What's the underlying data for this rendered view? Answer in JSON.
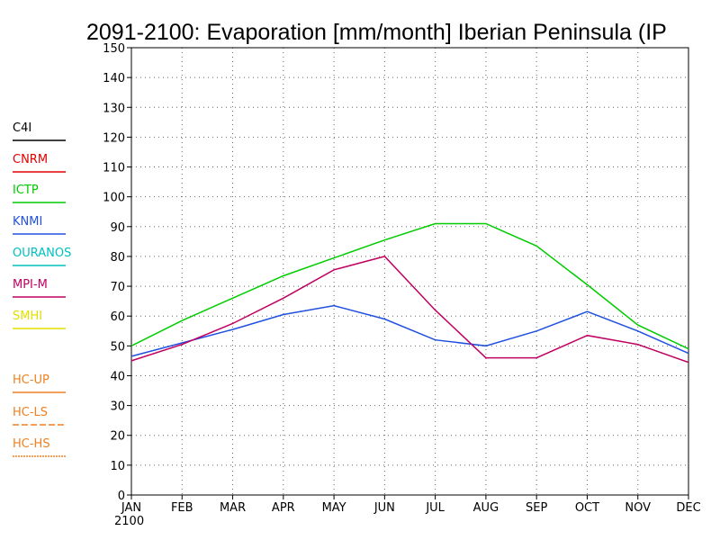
{
  "chart_data": {
    "type": "line",
    "title": "2091-2100: Evaporation [mm/month] Iberian Peninsula (IP",
    "xlabel": "",
    "ylabel": "",
    "categories": [
      "JAN",
      "FEB",
      "MAR",
      "APR",
      "MAY",
      "JUN",
      "JUL",
      "AUG",
      "SEP",
      "OCT",
      "NOV",
      "DEC"
    ],
    "x_year_label": "2100",
    "ylim": [
      0,
      150
    ],
    "yticks": [
      0,
      10,
      20,
      30,
      40,
      50,
      60,
      70,
      80,
      90,
      100,
      110,
      120,
      130,
      140,
      150
    ],
    "grid": true,
    "legend_position": "left",
    "legend": [
      {
        "name": "C4I",
        "color": "#000000",
        "dash": "solid"
      },
      {
        "name": "CNRM",
        "color": "#e00000",
        "dash": "solid"
      },
      {
        "name": "ICTP",
        "color": "#00cc00",
        "dash": "solid"
      },
      {
        "name": "KNMI",
        "color": "#2050e0",
        "dash": "solid"
      },
      {
        "name": "OURANOS",
        "color": "#00c0c0",
        "dash": "solid"
      },
      {
        "name": "MPI-M",
        "color": "#c00060",
        "dash": "solid"
      },
      {
        "name": "SMHI",
        "color": "#e0e000",
        "dash": "solid"
      },
      {
        "name": "HC-UP",
        "color": "#f08020",
        "dash": "solid"
      },
      {
        "name": "HC-LS",
        "color": "#f08020",
        "dash": "dashed"
      },
      {
        "name": "HC-HS",
        "color": "#f08020",
        "dash": "dotted"
      }
    ],
    "series": [
      {
        "name": "ICTP",
        "color": "#00cc00",
        "values": [
          50,
          58.5,
          66,
          73.5,
          79.5,
          85.5,
          91,
          91,
          83.5,
          70.5,
          57,
          49
        ]
      },
      {
        "name": "KNMI",
        "color": "#2050e0",
        "values": [
          46.5,
          51,
          55.5,
          60.5,
          63.5,
          59,
          52,
          50,
          55,
          61.5,
          55,
          47.5
        ]
      },
      {
        "name": "MPI-M",
        "color": "#c00060",
        "values": [
          45,
          50.5,
          57.5,
          66,
          75.5,
          80,
          62,
          46,
          46,
          53.5,
          50.5,
          44.5
        ]
      }
    ]
  }
}
